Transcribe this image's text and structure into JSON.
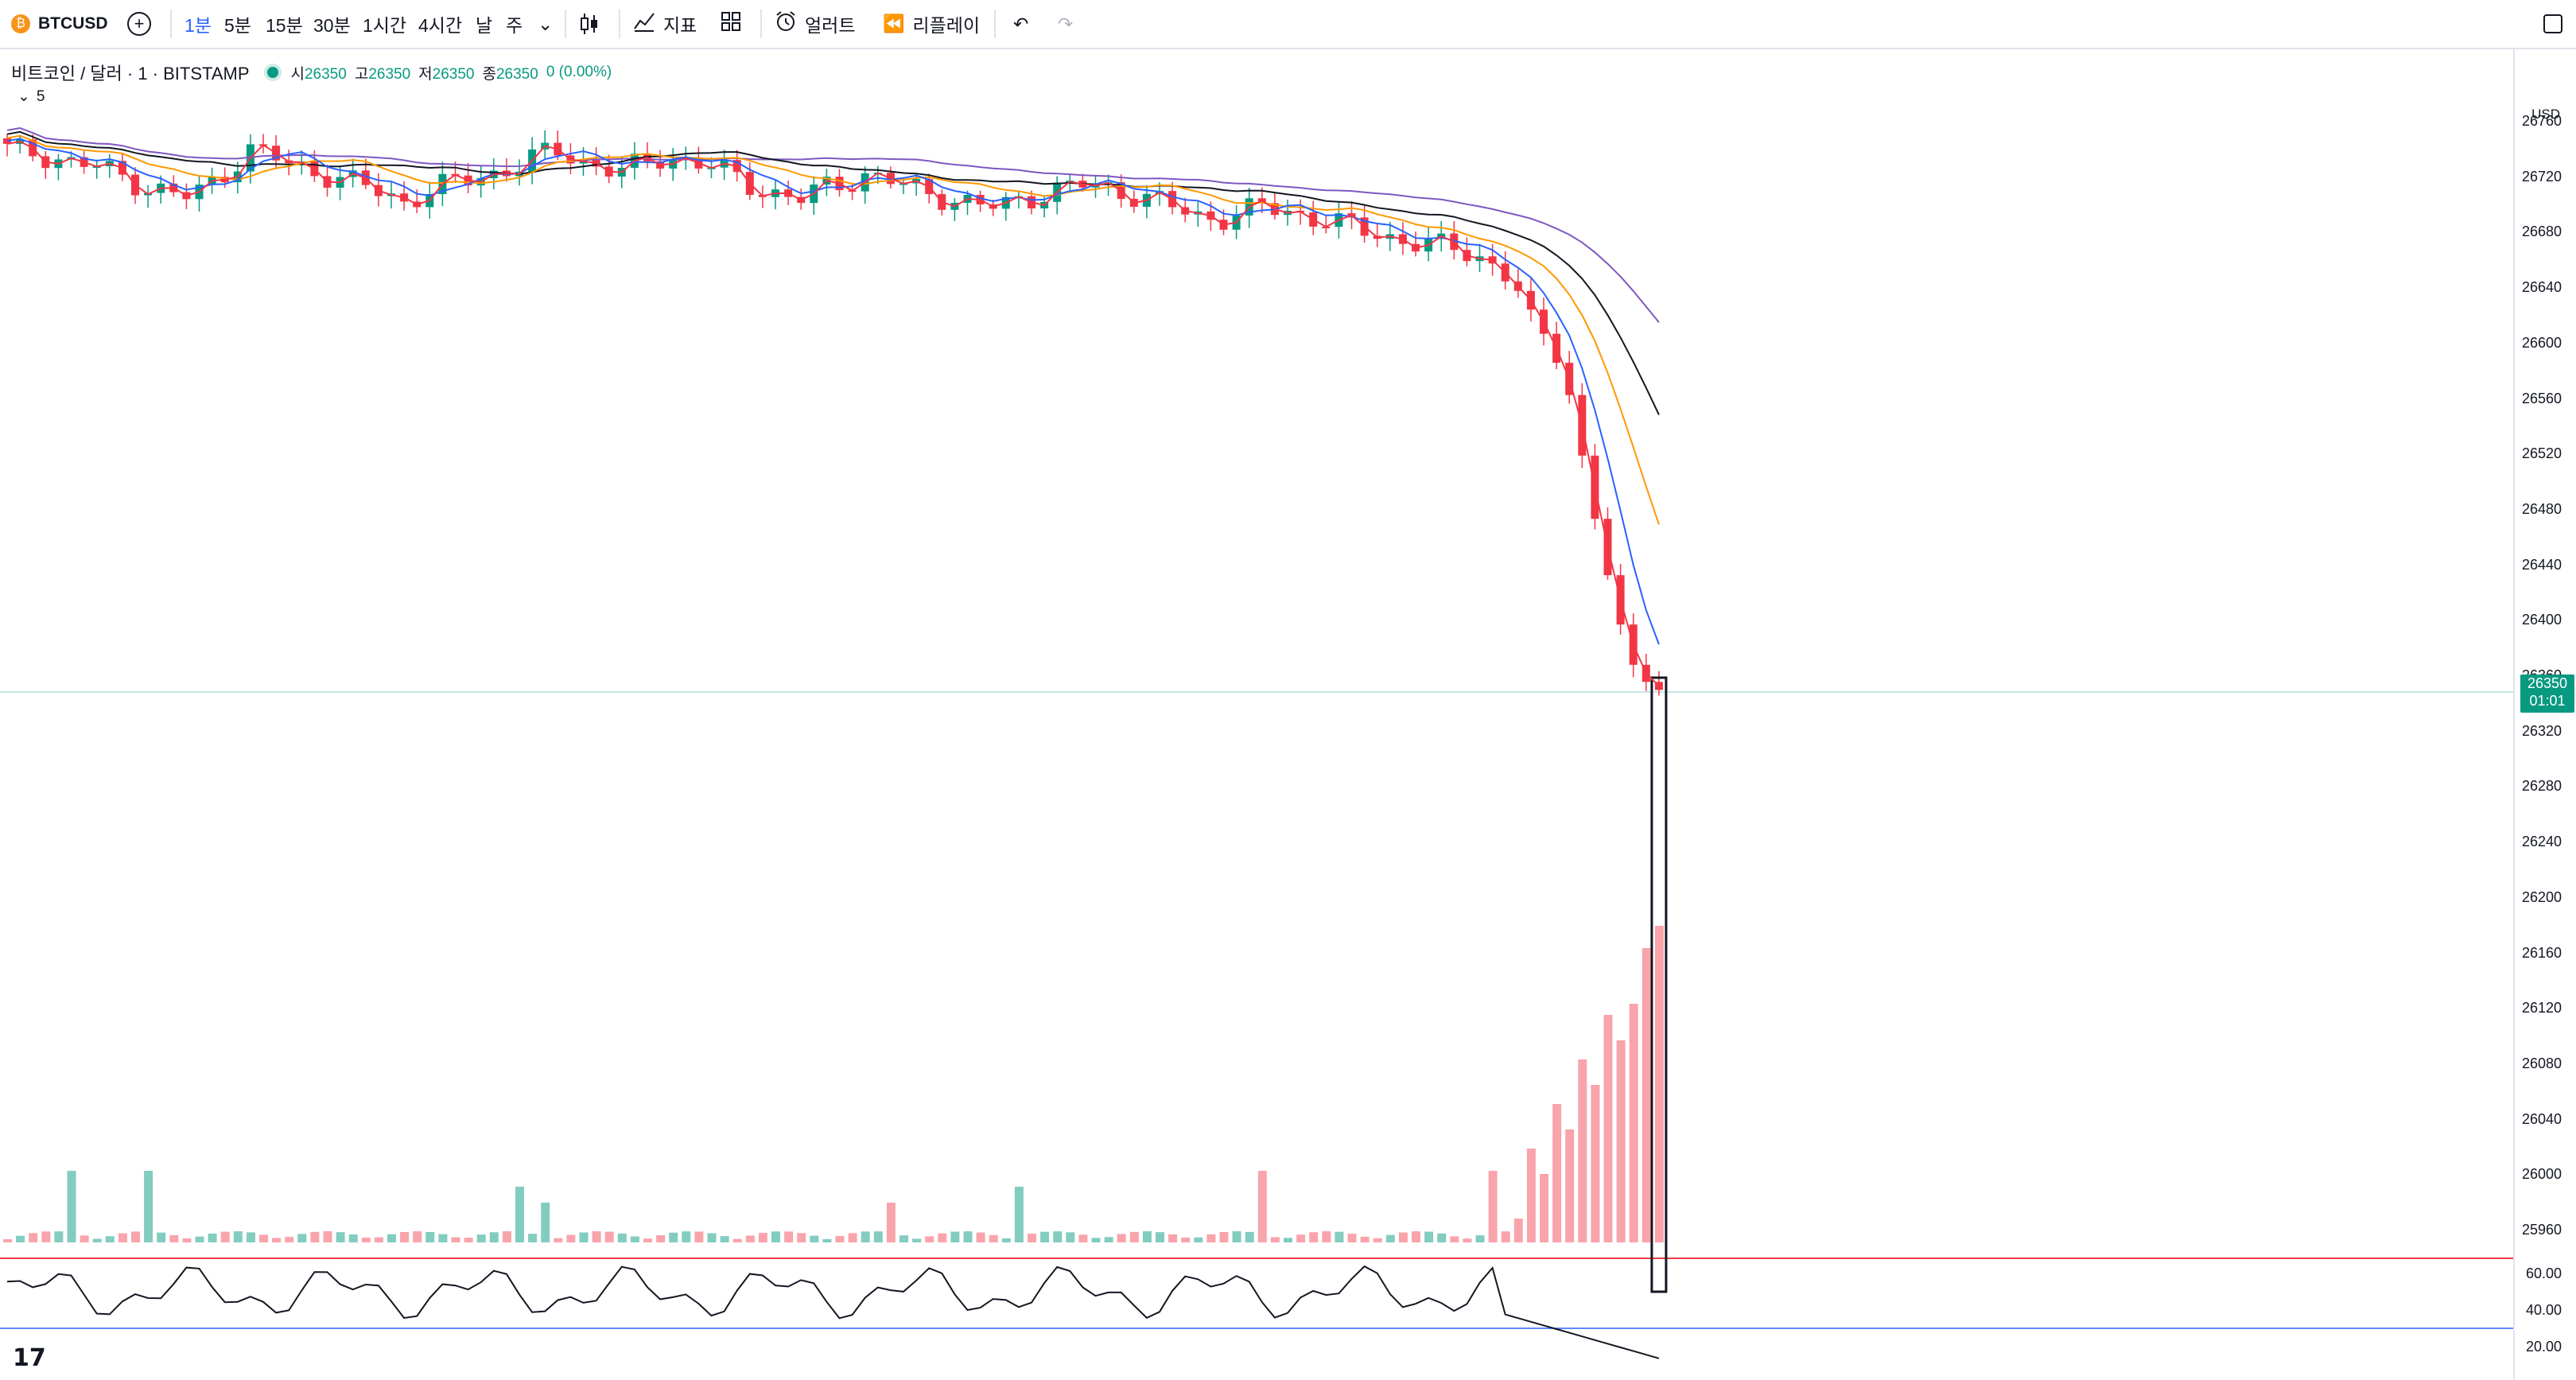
{
  "toolbar": {
    "symbol": "BTCUSD",
    "intervals": [
      "1분",
      "5분",
      "15분",
      "30분",
      "1시간",
      "4시간",
      "날",
      "주"
    ],
    "active_interval": "1분",
    "indicators_label": "지표",
    "alert_label": "얼러트",
    "replay_label": "리플레이"
  },
  "legend": {
    "title": "비트코인 / 달러 · 1 · BITSTAMP",
    "open_label": "시",
    "open": "26350",
    "high_label": "고",
    "high": "26350",
    "low_label": "저",
    "low": "26350",
    "close_label": "종",
    "close": "26350",
    "change": "0 (0.00%)",
    "collapse_count": "5"
  },
  "axis": {
    "currency": "USD",
    "price_labels": [
      "26760",
      "26720",
      "26680",
      "26640",
      "26600",
      "26560",
      "26520",
      "26480",
      "26440",
      "26400",
      "26360",
      "26320",
      "26280",
      "26240",
      "26200",
      "26160",
      "26120",
      "26080",
      "26040",
      "26000",
      "25960"
    ],
    "last_price": "26350",
    "countdown": "01:01",
    "rsi_labels": [
      "60.00",
      "40.00",
      "20.00"
    ]
  },
  "colors": {
    "up": "#089981",
    "down": "#f23645",
    "ma1": "#7e57c2",
    "ma2": "#131722",
    "ma3": "#ff9800",
    "ma4": "#2962ff",
    "ma5": "#f23645"
  },
  "chart_data": {
    "type": "candlestick",
    "series_name": "BTCUSD 1m",
    "ylim": [
      25950,
      26780
    ],
    "note_values": [
      26740,
      26738,
      26735,
      26730,
      26728,
      26722,
      26715,
      26710,
      26705,
      26712,
      26725,
      26740,
      26735,
      26728,
      26724,
      26720,
      26715,
      26708,
      26702,
      26710,
      26715,
      26718,
      26722,
      26728,
      26735,
      26738,
      26732,
      26728,
      26724,
      26730,
      26735,
      26732,
      26728,
      26720,
      26712,
      26708,
      26704,
      26712,
      26716,
      26722,
      26718,
      26712,
      26708,
      26704,
      26700,
      26698,
      26704,
      26708,
      26712,
      26715,
      26712,
      26708,
      26704,
      26698,
      26692,
      26690,
      26694,
      26698,
      26696,
      26692,
      26688,
      26684,
      26680,
      26676,
      26672,
      26670,
      26668,
      26662,
      26650,
      26630,
      26600,
      26560,
      26480,
      26410,
      26360,
      26350
    ]
  }
}
